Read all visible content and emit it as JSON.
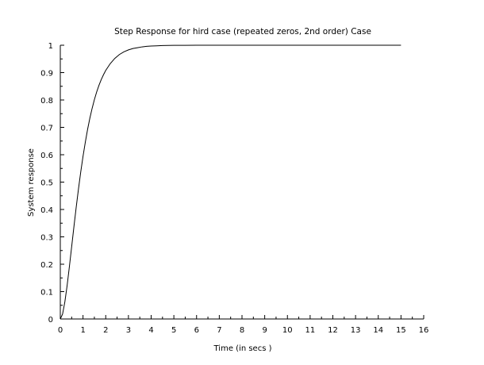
{
  "chart_data": {
    "type": "line",
    "title": "Step Response for hird case (repeated zeros, 2nd order) Case",
    "xlabel": "Time (in secs )",
    "ylabel": "System response",
    "xlim": [
      0,
      16
    ],
    "ylim": [
      0,
      1
    ],
    "xticks": [
      "0",
      "1",
      "2",
      "3",
      "4",
      "5",
      "6",
      "7",
      "8",
      "9",
      "10",
      "11",
      "12",
      "13",
      "14",
      "15",
      "16"
    ],
    "yticks": [
      "0",
      "0.1",
      "0.2",
      "0.3",
      "0.4",
      "0.5",
      "0.6",
      "0.7",
      "0.8",
      "0.9",
      "1"
    ],
    "grid": false,
    "legend": "none",
    "series": [
      {
        "color": "#000000",
        "x": [
          0,
          0.1,
          0.2,
          0.3,
          0.4,
          0.5,
          0.6,
          0.7,
          0.8,
          0.9,
          1.0,
          1.1,
          1.2,
          1.3,
          1.4,
          1.5,
          1.6,
          1.7,
          1.8,
          1.9,
          2.0,
          2.2,
          2.4,
          2.6,
          2.8,
          3.0,
          3.2,
          3.4,
          3.6,
          3.8,
          4.0,
          4.25,
          4.5,
          5.0,
          5.5,
          6.0,
          7.0,
          8.0,
          9.0,
          10.0,
          11.0,
          12.0,
          13.0,
          14.0,
          15.0
        ],
        "y": [
          0,
          0.018,
          0.062,
          0.122,
          0.191,
          0.264,
          0.337,
          0.408,
          0.475,
          0.537,
          0.594,
          0.645,
          0.692,
          0.733,
          0.769,
          0.801,
          0.829,
          0.853,
          0.874,
          0.892,
          0.908,
          0.933,
          0.952,
          0.966,
          0.976,
          0.983,
          0.988,
          0.991,
          0.994,
          0.996,
          0.997,
          0.998,
          0.999,
          0.9995,
          0.9998,
          1.0,
          1.0,
          1.0,
          1.0,
          1.0,
          1.0,
          1.0,
          1.0,
          1.0,
          1.0
        ]
      }
    ]
  }
}
